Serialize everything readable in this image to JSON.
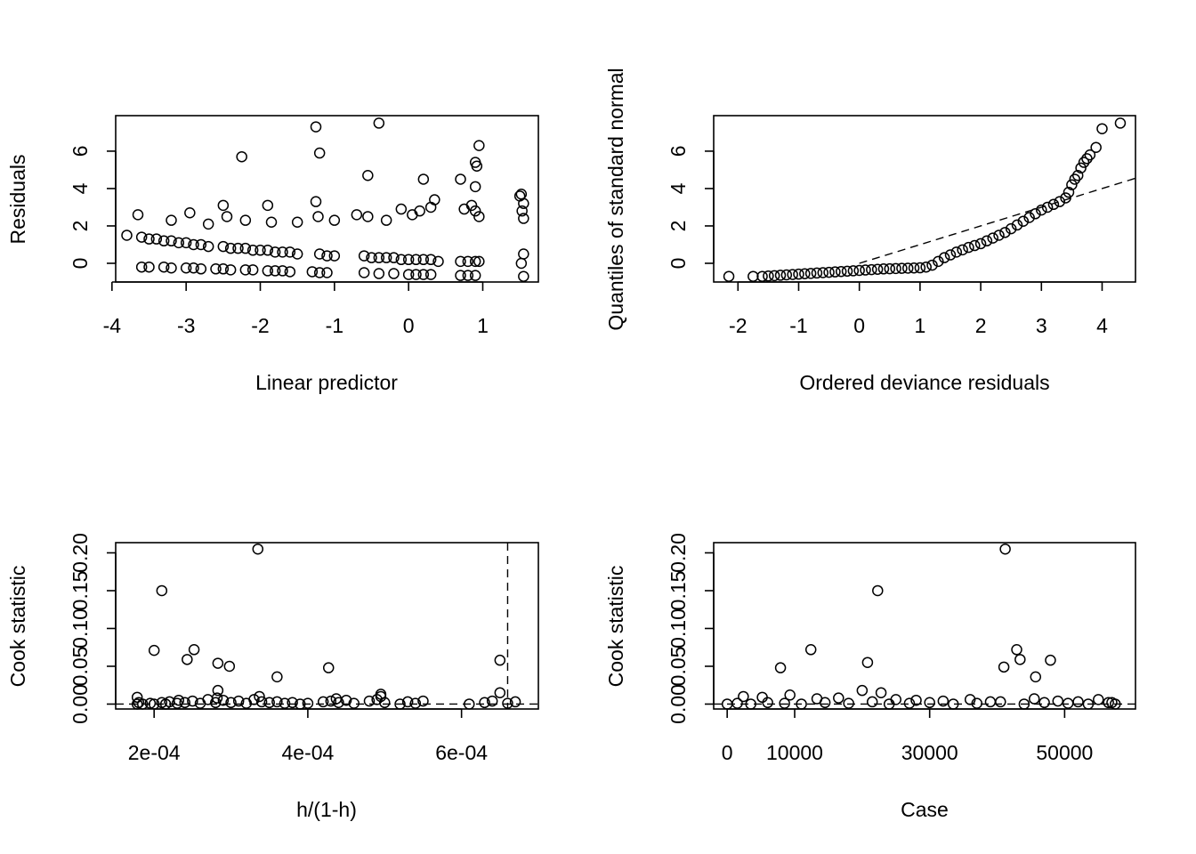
{
  "chart_data": [
    {
      "type": "scatter",
      "xlabel": "Linear predictor",
      "ylabel": "Residuals",
      "xlim": [
        -3.95,
        1.75
      ],
      "ylim": [
        -1.0,
        7.9
      ],
      "xticks": [
        -4,
        -3,
        -2,
        -1,
        0,
        1
      ],
      "xtick_labels": [
        "-4",
        "-3",
        "-2",
        "-1",
        "0",
        "1"
      ],
      "yticks": [
        0,
        2,
        4,
        6
      ],
      "ytick_labels": [
        "0",
        "2",
        "4",
        "6"
      ],
      "x": [
        -3.8,
        -3.6,
        -3.5,
        -3.4,
        -3.3,
        -3.2,
        -3.1,
        -3.0,
        -2.9,
        -2.8,
        -2.7,
        -2.5,
        -2.4,
        -2.3,
        -2.2,
        -2.1,
        -2.0,
        -1.9,
        -1.8,
        -1.7,
        -1.6,
        -1.5,
        -1.2,
        -1.1,
        -1.0,
        -0.6,
        -0.5,
        -0.4,
        -0.3,
        -0.2,
        -0.1,
        0.0,
        0.1,
        0.2,
        0.3,
        0.4,
        0.7,
        0.8,
        0.9,
        0.95,
        1.52,
        1.55,
        -3.6,
        -3.5,
        -3.3,
        -3.2,
        -3.0,
        -2.9,
        -2.8,
        -2.6,
        -2.5,
        -2.4,
        -2.2,
        -2.1,
        -1.9,
        -1.8,
        -1.7,
        -1.6,
        -1.3,
        -1.2,
        -1.1,
        -0.6,
        -0.4,
        -0.2,
        0.0,
        0.1,
        0.2,
        0.3,
        0.7,
        0.8,
        0.9,
        1.55,
        -3.65,
        -3.2,
        -2.95,
        -2.7,
        -2.5,
        -2.45,
        -2.2,
        -1.9,
        -1.85,
        -1.5,
        -1.25,
        -1.22,
        -1.0,
        -0.7,
        -0.55,
        -0.3,
        -0.1,
        0.05,
        0.15,
        0.3,
        0.35,
        0.75,
        0.85,
        0.9,
        0.95,
        1.5,
        1.55,
        1.53,
        -1.25,
        -0.4,
        -2.25,
        -1.2,
        -0.55,
        0.2,
        0.7,
        0.9,
        0.92,
        0.95,
        0.9,
        1.52,
        1.55
      ],
      "y": [
        1.5,
        1.4,
        1.3,
        1.3,
        1.2,
        1.2,
        1.1,
        1.1,
        1.0,
        1.0,
        0.9,
        0.9,
        0.8,
        0.8,
        0.8,
        0.7,
        0.7,
        0.7,
        0.6,
        0.6,
        0.6,
        0.5,
        0.5,
        0.4,
        0.4,
        0.4,
        0.3,
        0.3,
        0.3,
        0.3,
        0.2,
        0.2,
        0.2,
        0.2,
        0.2,
        0.1,
        0.1,
        0.1,
        0.1,
        0.1,
        0.0,
        0.5,
        -0.2,
        -0.2,
        -0.2,
        -0.25,
        -0.25,
        -0.25,
        -0.3,
        -0.3,
        -0.3,
        -0.35,
        -0.35,
        -0.35,
        -0.4,
        -0.4,
        -0.4,
        -0.45,
        -0.45,
        -0.5,
        -0.5,
        -0.5,
        -0.55,
        -0.55,
        -0.6,
        -0.6,
        -0.6,
        -0.6,
        -0.65,
        -0.65,
        -0.65,
        -0.7,
        2.6,
        2.3,
        2.7,
        2.1,
        3.1,
        2.5,
        2.3,
        3.1,
        2.2,
        2.2,
        3.3,
        2.5,
        2.3,
        2.6,
        2.5,
        2.3,
        2.9,
        2.6,
        2.8,
        3.0,
        3.4,
        2.9,
        3.1,
        2.8,
        2.5,
        3.6,
        3.2,
        2.8,
        7.3,
        7.5,
        5.7,
        5.9,
        4.7,
        4.5,
        4.5,
        5.4,
        5.2,
        6.3,
        4.1,
        3.7,
        2.4
      ]
    },
    {
      "type": "scatter",
      "xlabel": "Ordered deviance residuals",
      "ylabel": "Quantiles of standard normal",
      "xlim": [
        -2.4,
        4.55
      ],
      "ylim": [
        -1.0,
        7.9
      ],
      "xticks": [
        -2,
        -1,
        0,
        1,
        2,
        3,
        4
      ],
      "xtick_labels": [
        "-2",
        "-1",
        "0",
        "1",
        "2",
        "3",
        "4"
      ],
      "yticks": [
        0,
        2,
        4,
        6
      ],
      "ytick_labels": [
        "0",
        "2",
        "4",
        "6"
      ],
      "x": [
        -2.15,
        -1.75,
        -1.6,
        -1.5,
        -1.4,
        -1.3,
        -1.2,
        -1.1,
        -1.0,
        -0.9,
        -0.8,
        -0.7,
        -0.6,
        -0.5,
        -0.4,
        -0.3,
        -0.2,
        -0.1,
        0.0,
        0.1,
        0.2,
        0.3,
        0.4,
        0.5,
        0.6,
        0.7,
        0.8,
        0.9,
        1.0,
        1.1,
        1.2,
        1.3,
        1.4,
        1.5,
        1.6,
        1.7,
        1.8,
        1.9,
        2.0,
        2.1,
        2.2,
        2.3,
        2.4,
        2.5,
        2.6,
        2.7,
        2.8,
        2.9,
        3.0,
        3.1,
        3.2,
        3.3,
        3.4,
        3.45,
        3.5,
        3.55,
        3.6,
        3.65,
        3.7,
        3.75,
        3.8,
        3.9,
        4.0,
        4.3
      ],
      "y": [
        -0.7,
        -0.7,
        -0.7,
        -0.68,
        -0.66,
        -0.64,
        -0.62,
        -0.6,
        -0.58,
        -0.56,
        -0.54,
        -0.52,
        -0.5,
        -0.48,
        -0.46,
        -0.44,
        -0.42,
        -0.4,
        -0.38,
        -0.36,
        -0.34,
        -0.32,
        -0.3,
        -0.29,
        -0.28,
        -0.27,
        -0.26,
        -0.25,
        -0.24,
        -0.2,
        -0.1,
        0.1,
        0.3,
        0.45,
        0.6,
        0.72,
        0.85,
        0.95,
        1.05,
        1.2,
        1.35,
        1.5,
        1.65,
        1.85,
        2.05,
        2.25,
        2.45,
        2.65,
        2.85,
        3.0,
        3.15,
        3.3,
        3.5,
        3.8,
        4.2,
        4.5,
        4.7,
        5.1,
        5.4,
        5.6,
        5.8,
        6.2,
        7.2,
        7.5
      ],
      "reference_line": {
        "x": [
          0,
          4.55
        ],
        "y": [
          0,
          4.55
        ]
      }
    },
    {
      "type": "scatter",
      "xlabel": "h/(1-h)",
      "ylabel": "Cook statistic",
      "xlim": [
        0.00015,
        0.0007
      ],
      "ylim": [
        -0.0065,
        0.2135
      ],
      "xticks": [
        0.0002,
        0.0004,
        0.0006
      ],
      "xtick_labels": [
        "2e-04",
        "4e-04",
        "6e-04"
      ],
      "yticks": [
        0.0,
        0.05,
        0.1,
        0.15,
        0.2
      ],
      "ytick_labels": [
        "0.00",
        "0.05",
        "0.10",
        "0.15",
        "0.20"
      ],
      "x": [
        0.000335,
        0.00021,
        0.0002,
        0.000252,
        0.000243,
        0.000283,
        0.000298,
        0.00036,
        0.000427,
        0.00065,
        0.000283,
        0.00065,
        0.000495,
        0.000495,
        0.000178,
        0.00018,
        0.000185,
        0.000195,
        0.0002,
        0.00021,
        0.000215,
        0.00022,
        0.00023,
        0.00024,
        0.00025,
        0.00026,
        0.00027,
        0.00028,
        0.00029,
        0.0003,
        0.00031,
        0.00032,
        0.00033,
        0.00034,
        0.00035,
        0.00036,
        0.00037,
        0.00038,
        0.00039,
        0.0004,
        0.00042,
        0.00043,
        0.00044,
        0.00045,
        0.00046,
        0.00048,
        0.00049,
        0.0005,
        0.00052,
        0.00053,
        0.00054,
        0.00055,
        0.00061,
        0.00063,
        0.00064,
        0.00066,
        0.00067,
        0.000178,
        0.000232,
        0.000282,
        0.000337,
        0.000437
      ],
      "y": [
        0.205,
        0.15,
        0.071,
        0.072,
        0.059,
        0.054,
        0.05,
        0.036,
        0.048,
        0.058,
        0.018,
        0.015,
        0.013,
        0.01,
        0.0,
        0.002,
        0.0,
        0.001,
        0.0,
        0.002,
        0.0,
        0.003,
        0.001,
        0.002,
        0.004,
        0.001,
        0.006,
        0.002,
        0.005,
        0.002,
        0.004,
        0.001,
        0.006,
        0.003,
        0.002,
        0.003,
        0.001,
        0.002,
        0.0,
        0.001,
        0.003,
        0.004,
        0.002,
        0.005,
        0.001,
        0.004,
        0.006,
        0.002,
        0.0,
        0.003,
        0.001,
        0.004,
        0.0,
        0.002,
        0.004,
        0.001,
        0.003,
        0.009,
        0.005,
        0.008,
        0.01,
        0.007
      ],
      "reference_lines": {
        "vertical_x": 0.00066,
        "horizontal_y": 0.0
      }
    },
    {
      "type": "scatter",
      "xlabel": "Case",
      "ylabel": "Cook statistic",
      "xlim": [
        -2000,
        60500
      ],
      "ylim": [
        -0.0065,
        0.2135
      ],
      "xticks": [
        0,
        10000,
        30000,
        50000
      ],
      "xtick_labels": [
        "0",
        "10000",
        "30000",
        "50000"
      ],
      "yticks": [
        0.0,
        0.05,
        0.1,
        0.15,
        0.2
      ],
      "ytick_labels": [
        "0.00",
        "0.05",
        "0.10",
        "0.15",
        "0.20"
      ],
      "x": [
        41200,
        22300,
        12400,
        7900,
        42900,
        20800,
        43400,
        47900,
        41000,
        45700,
        20000,
        22800,
        2400,
        5200,
        9300,
        13300,
        16500,
        25000,
        28000,
        32000,
        36000,
        39000,
        45500,
        49000,
        52000,
        55000,
        57000,
        0,
        1500,
        3500,
        6000,
        8500,
        11000,
        14500,
        18000,
        21500,
        24000,
        27000,
        30000,
        33500,
        37000,
        40500,
        44000,
        47000,
        50500,
        53500,
        56500,
        57500
      ],
      "y": [
        0.205,
        0.15,
        0.072,
        0.048,
        0.072,
        0.055,
        0.059,
        0.058,
        0.049,
        0.036,
        0.018,
        0.015,
        0.01,
        0.009,
        0.012,
        0.007,
        0.008,
        0.006,
        0.005,
        0.004,
        0.006,
        0.003,
        0.007,
        0.004,
        0.003,
        0.006,
        0.002,
        0.0,
        0.001,
        0.0,
        0.002,
        0.001,
        0.0,
        0.002,
        0.001,
        0.003,
        0.0,
        0.001,
        0.002,
        0.0,
        0.001,
        0.003,
        0.0,
        0.002,
        0.001,
        0.0,
        0.002,
        0.0
      ],
      "reference_lines": {
        "horizontal_y": 0.0
      }
    }
  ]
}
